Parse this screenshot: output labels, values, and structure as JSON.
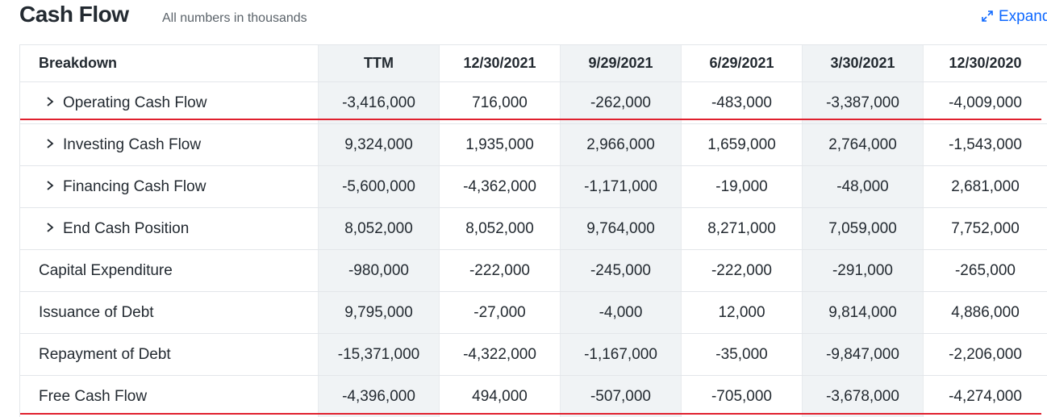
{
  "header": {
    "title": "Cash Flow",
    "subtitle": "All numbers in thousands",
    "expand": "Expand"
  },
  "table": {
    "columns": [
      "Breakdown",
      "TTM",
      "12/30/2021",
      "9/29/2021",
      "6/29/2021",
      "3/30/2021",
      "12/30/2020"
    ],
    "rows": [
      {
        "label": "Operating Cash Flow",
        "expandable": true,
        "values": [
          "-3,416,000",
          "716,000",
          "-262,000",
          "-483,000",
          "-3,387,000",
          "-4,009,000"
        ]
      },
      {
        "label": "Investing Cash Flow",
        "expandable": true,
        "values": [
          "9,324,000",
          "1,935,000",
          "2,966,000",
          "1,659,000",
          "2,764,000",
          "-1,543,000"
        ]
      },
      {
        "label": "Financing Cash Flow",
        "expandable": true,
        "values": [
          "-5,600,000",
          "-4,362,000",
          "-1,171,000",
          "-19,000",
          "-48,000",
          "2,681,000"
        ]
      },
      {
        "label": "End Cash Position",
        "expandable": true,
        "values": [
          "8,052,000",
          "8,052,000",
          "9,764,000",
          "8,271,000",
          "7,059,000",
          "7,752,000"
        ]
      },
      {
        "label": "Capital Expenditure",
        "expandable": false,
        "values": [
          "-980,000",
          "-222,000",
          "-245,000",
          "-222,000",
          "-291,000",
          "-265,000"
        ]
      },
      {
        "label": "Issuance of Debt",
        "expandable": false,
        "values": [
          "9,795,000",
          "-27,000",
          "-4,000",
          "12,000",
          "9,814,000",
          "4,886,000"
        ]
      },
      {
        "label": "Repayment of Debt",
        "expandable": false,
        "values": [
          "-15,371,000",
          "-4,322,000",
          "-1,167,000",
          "-35,000",
          "-9,847,000",
          "-2,206,000"
        ]
      },
      {
        "label": "Free Cash Flow",
        "expandable": false,
        "values": [
          "-4,396,000",
          "494,000",
          "-507,000",
          "-705,000",
          "-3,678,000",
          "-4,274,000"
        ]
      }
    ]
  }
}
